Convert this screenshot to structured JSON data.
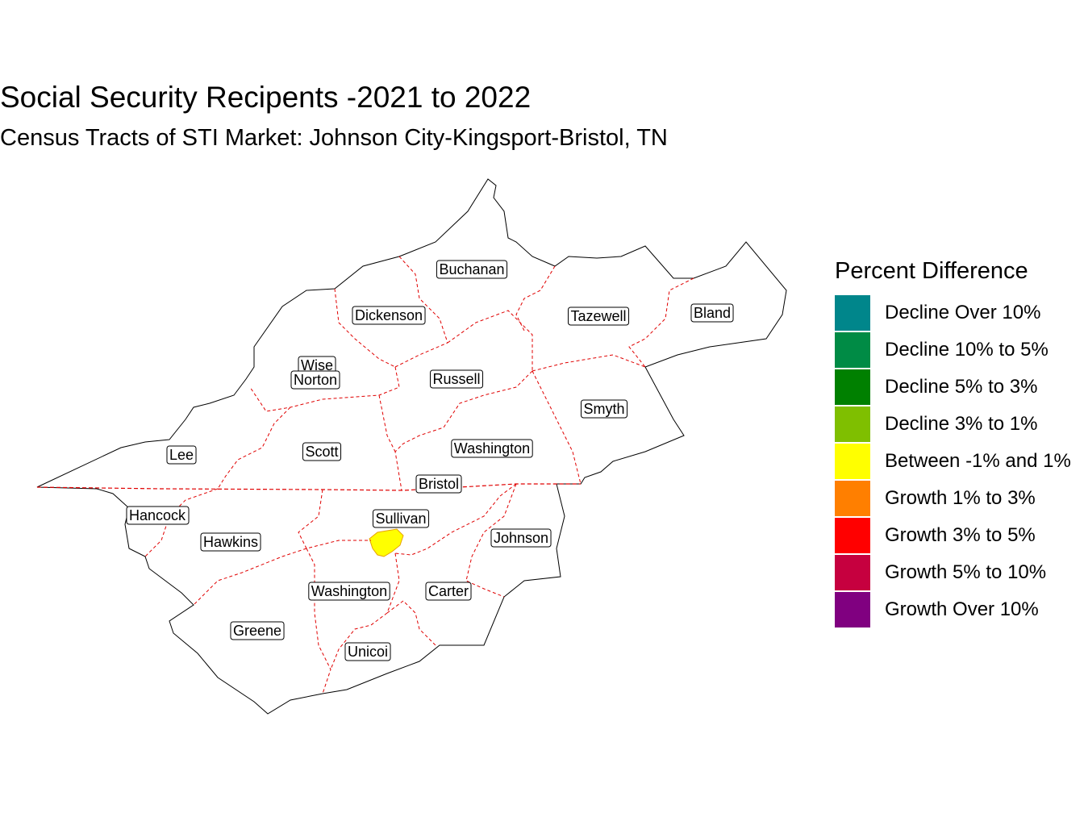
{
  "title": "Social Security Recipents -2021 to 2022",
  "subtitle": "Census Tracts of STI Market: Johnson City-Kingsport-Bristol, TN",
  "legend": {
    "title": "Percent Difference",
    "items": [
      {
        "label": "Decline Over 10%",
        "color": "#00868B"
      },
      {
        "label": "Decline 10% to 5%",
        "color": "#008B45"
      },
      {
        "label": "Decline 5% to 3%",
        "color": "#008000"
      },
      {
        "label": "Decline 3% to 1%",
        "color": "#7FBF00"
      },
      {
        "label": "Between -1% and 1%",
        "color": "#FFFF00"
      },
      {
        "label": "Growth 1% to 3%",
        "color": "#FF7F00"
      },
      {
        "label": "Growth 3% to 5%",
        "color": "#FF0000"
      },
      {
        "label": "Growth 5% to 10%",
        "color": "#C6003F"
      },
      {
        "label": "Growth Over 10%",
        "color": "#800080"
      }
    ]
  },
  "counties": [
    "Buchanan",
    "Dickenson",
    "Tazewell",
    "Bland",
    "Wise",
    "Norton",
    "Russell",
    "Smyth",
    "Lee",
    "Scott",
    "Washington",
    "Bristol",
    "Hancock",
    "Sullivan",
    "Hawkins",
    "Johnson",
    "Washington",
    "Carter",
    "Greene",
    "Unicoi"
  ],
  "map_colors": {
    "outline": "#000000",
    "county_border": "#E00000",
    "highlight_tract": "#FFFF00"
  }
}
